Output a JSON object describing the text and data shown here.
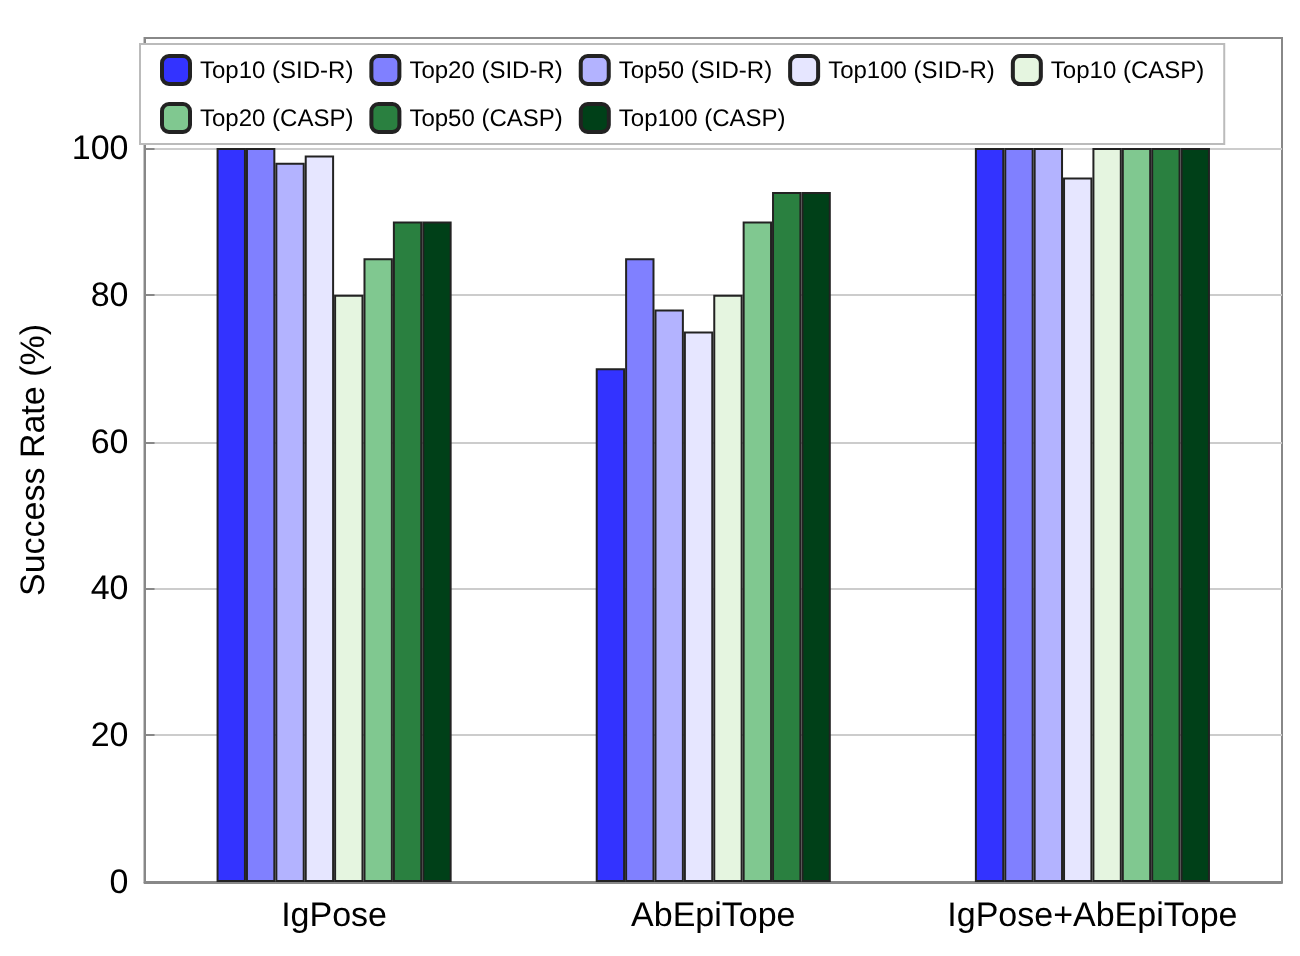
{
  "chart_data": {
    "type": "bar",
    "ylabel": "Success Rate (%)",
    "categories": [
      "IgPose",
      "AbEpiTope",
      "IgPose+AbEpiTope"
    ],
    "series": [
      {
        "name": "Top10 (SID-R)",
        "color": "#3333ff",
        "values": [
          100,
          70,
          100
        ]
      },
      {
        "name": "Top20 (SID-R)",
        "color": "#8080ff",
        "values": [
          100,
          85,
          100
        ]
      },
      {
        "name": "Top50 (SID-R)",
        "color": "#b3b3ff",
        "values": [
          98,
          78,
          100
        ]
      },
      {
        "name": "Top100 (SID-R)",
        "color": "#e6e6ff",
        "values": [
          99,
          75,
          96
        ]
      },
      {
        "name": "Top10 (CASP)",
        "color": "#e5f5e0",
        "values": [
          80,
          80,
          100
        ]
      },
      {
        "name": "Top20 (CASP)",
        "color": "#80c890",
        "values": [
          85,
          90,
          100
        ]
      },
      {
        "name": "Top50 (CASP)",
        "color": "#2a8040",
        "values": [
          90,
          94,
          100
        ]
      },
      {
        "name": "Top100 (CASP)",
        "color": "#004018",
        "values": [
          90,
          94,
          100
        ]
      }
    ],
    "ylim": [
      0,
      115
    ],
    "yticks": [
      0,
      20,
      40,
      60,
      80,
      100
    ],
    "grid": "y",
    "legend": "top"
  }
}
